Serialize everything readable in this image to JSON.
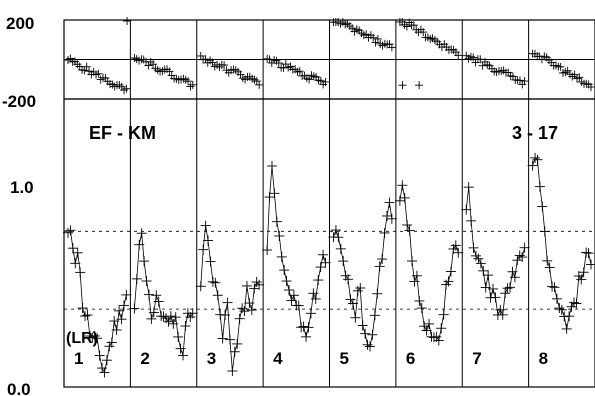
{
  "chart_data": {
    "type": "scatter",
    "title": "EF - KM",
    "subtitle": "3 - 17",
    "corner_label": "(LR)",
    "panels": [
      "1",
      "2",
      "3",
      "4",
      "5",
      "6",
      "7",
      "8"
    ],
    "top_plot": {
      "yticks": [
        "200",
        "-200"
      ],
      "ylim": [
        -200,
        200
      ],
      "reference_line": 0,
      "series": [
        {
          "panel": "1",
          "start": 0,
          "end": -160,
          "outlier": [
            0.95,
            195
          ]
        },
        {
          "panel": "2",
          "start": 20,
          "end": -130
        },
        {
          "panel": "3",
          "start": 10,
          "end": -120
        },
        {
          "panel": "4",
          "start": 5,
          "end": -125
        },
        {
          "panel": "5",
          "start": 200,
          "end": 60
        },
        {
          "panel": "6",
          "start": 200,
          "end": 30,
          "stray_x": [
            0.1,
            0.35
          ],
          "stray_y": -130
        },
        {
          "panel": "7",
          "start": 20,
          "end": -120
        },
        {
          "panel": "8",
          "start": 40,
          "end": -140
        }
      ]
    },
    "bottom_plot": {
      "yticks": [
        "1.0",
        "0.0"
      ],
      "ylim": [
        0.0,
        1.85
      ],
      "dashed_levels": [
        1.0,
        0.5
      ],
      "series": [
        {
          "panel": "1",
          "values": [
            0.97,
            0.95,
            0.92,
            0.85,
            0.9,
            0.7,
            0.55,
            0.48,
            0.42,
            0.35,
            0.3,
            0.28,
            0.25,
            0.2,
            0.15,
            0.1,
            0.18,
            0.25,
            0.32,
            0.38,
            0.42,
            0.45,
            0.5,
            0.55,
            0.6
          ]
        },
        {
          "panel": "2",
          "values": [
            0.45,
            0.65,
            0.85,
            0.95,
            0.8,
            0.65,
            0.58,
            0.5,
            0.45,
            0.55,
            0.52,
            0.48,
            0.42,
            0.38,
            0.35,
            0.4,
            0.45,
            0.5,
            0.3,
            0.2,
            0.25,
            0.4,
            0.5,
            0.45,
            0.45
          ]
        },
        {
          "panel": "3",
          "values": [
            0.7,
            0.85,
            1.02,
            0.95,
            0.75,
            0.65,
            0.6,
            0.55,
            0.45,
            0.35,
            0.42,
            0.5,
            0.3,
            0.12,
            0.2,
            0.3,
            0.38,
            0.48,
            0.55,
            0.6,
            0.58,
            0.55,
            0.62,
            0.65,
            0.6
          ]
        },
        {
          "panel": "4",
          "values": [
            0.9,
            1.2,
            1.45,
            1.3,
            1.1,
            0.95,
            0.85,
            0.75,
            0.68,
            0.6,
            0.5,
            0.62,
            0.55,
            0.48,
            0.4,
            0.35,
            0.3,
            0.42,
            0.48,
            0.55,
            0.6,
            0.65,
            0.72,
            0.8,
            0.85
          ]
        },
        {
          "panel": "5",
          "values": [
            0.95,
            1.0,
            0.9,
            0.85,
            0.8,
            0.7,
            0.65,
            0.6,
            0.55,
            0.5,
            0.55,
            0.6,
            0.45,
            0.38,
            0.33,
            0.3,
            0.35,
            0.42,
            0.55,
            0.72,
            0.85,
            1.0,
            1.15,
            1.25,
            1.1
          ]
        },
        {
          "panel": "6",
          "values": [
            1.15,
            1.3,
            1.2,
            1.05,
            0.95,
            0.8,
            0.72,
            0.65,
            0.58,
            0.5,
            0.45,
            0.4,
            0.35,
            0.3,
            0.28,
            0.3,
            0.35,
            0.4,
            0.5,
            0.6,
            0.7,
            0.8,
            0.9,
            0.95,
            0.85
          ]
        },
        {
          "panel": "7",
          "values": [
            1.2,
            1.3,
            1.1,
            0.95,
            0.88,
            0.82,
            0.78,
            0.72,
            0.68,
            0.65,
            0.62,
            0.6,
            0.55,
            0.52,
            0.5,
            0.52,
            0.55,
            0.58,
            0.62,
            0.68,
            0.72,
            0.78,
            0.82,
            0.85,
            0.85
          ]
        },
        {
          "panel": "8",
          "values": [
            1.45,
            1.5,
            1.4,
            1.25,
            1.15,
            1.0,
            0.88,
            0.78,
            0.7,
            0.65,
            0.6,
            0.55,
            0.5,
            0.45,
            0.42,
            0.45,
            0.5,
            0.55,
            0.6,
            0.65,
            0.7,
            0.75,
            0.8,
            0.85,
            0.85
          ]
        }
      ]
    }
  }
}
